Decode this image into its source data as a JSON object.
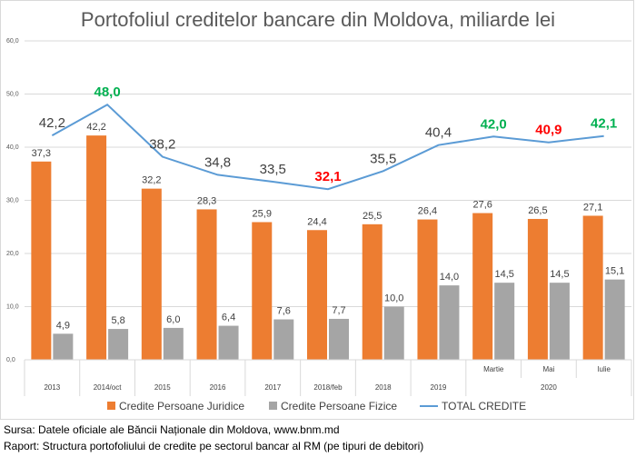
{
  "chart_data": {
    "type": "bar",
    "title": "Portofoliul creditelor bancare din Moldova, miliarde lei",
    "categories": [
      "2013",
      "2014/oct",
      "2015",
      "2016",
      "2017",
      "2018/feb",
      "2018",
      "2019",
      "Martie",
      "Mai",
      "Iulie"
    ],
    "group_labels": [
      {
        "label": "2020",
        "from": 8,
        "to": 10
      }
    ],
    "ylim": [
      0,
      60
    ],
    "yticks": [
      0,
      10,
      20,
      30,
      40,
      50,
      60
    ],
    "ytick_labels": [
      "0,0",
      "10,0",
      "20,0",
      "30,0",
      "40,0",
      "50,0",
      "60,0"
    ],
    "series": [
      {
        "name": "Credite Persoane Juridice",
        "type": "bar",
        "color": "#ed7d31",
        "values": [
          37.3,
          42.2,
          32.2,
          28.3,
          25.9,
          24.4,
          25.5,
          26.4,
          27.6,
          26.5,
          27.1
        ],
        "labels": [
          "37,3",
          "42,2",
          "32,2",
          "28,3",
          "25,9",
          "24,4",
          "25,5",
          "26,4",
          "27,6",
          "26,5",
          "27,1"
        ]
      },
      {
        "name": "Credite Persoane Fizice",
        "type": "bar",
        "color": "#a5a5a5",
        "values": [
          4.9,
          5.8,
          6.0,
          6.4,
          7.6,
          7.7,
          10.0,
          14.0,
          14.5,
          14.5,
          15.1
        ],
        "labels": [
          "4,9",
          "5,8",
          "6,0",
          "6,4",
          "7,6",
          "7,7",
          "10,0",
          "14,0",
          "14,5",
          "14,5",
          "15,1"
        ]
      },
      {
        "name": "TOTAL CREDITE",
        "type": "line",
        "color": "#5b9bd5",
        "values": [
          42.2,
          48.0,
          38.2,
          34.8,
          33.5,
          32.1,
          35.5,
          40.4,
          42.0,
          40.9,
          42.1
        ],
        "labels": [
          "42,2",
          "48,0",
          "38,2",
          "34,8",
          "33,5",
          "32,1",
          "35,5",
          "40,4",
          "42,0",
          "40,9",
          "42,1"
        ],
        "label_highlight": [
          "",
          "up",
          "",
          "",
          "",
          "down",
          "",
          "",
          "up",
          "down",
          "up"
        ]
      }
    ],
    "legend": "bottom"
  },
  "footer": {
    "source": "Sursa: Datele oficiale ale Băncii Naționale din Moldova, www.bnm.md",
    "report": "Raport: Structura portofoliului de credite pe sectorul bancar al RM (pe tipuri de debitori)"
  }
}
